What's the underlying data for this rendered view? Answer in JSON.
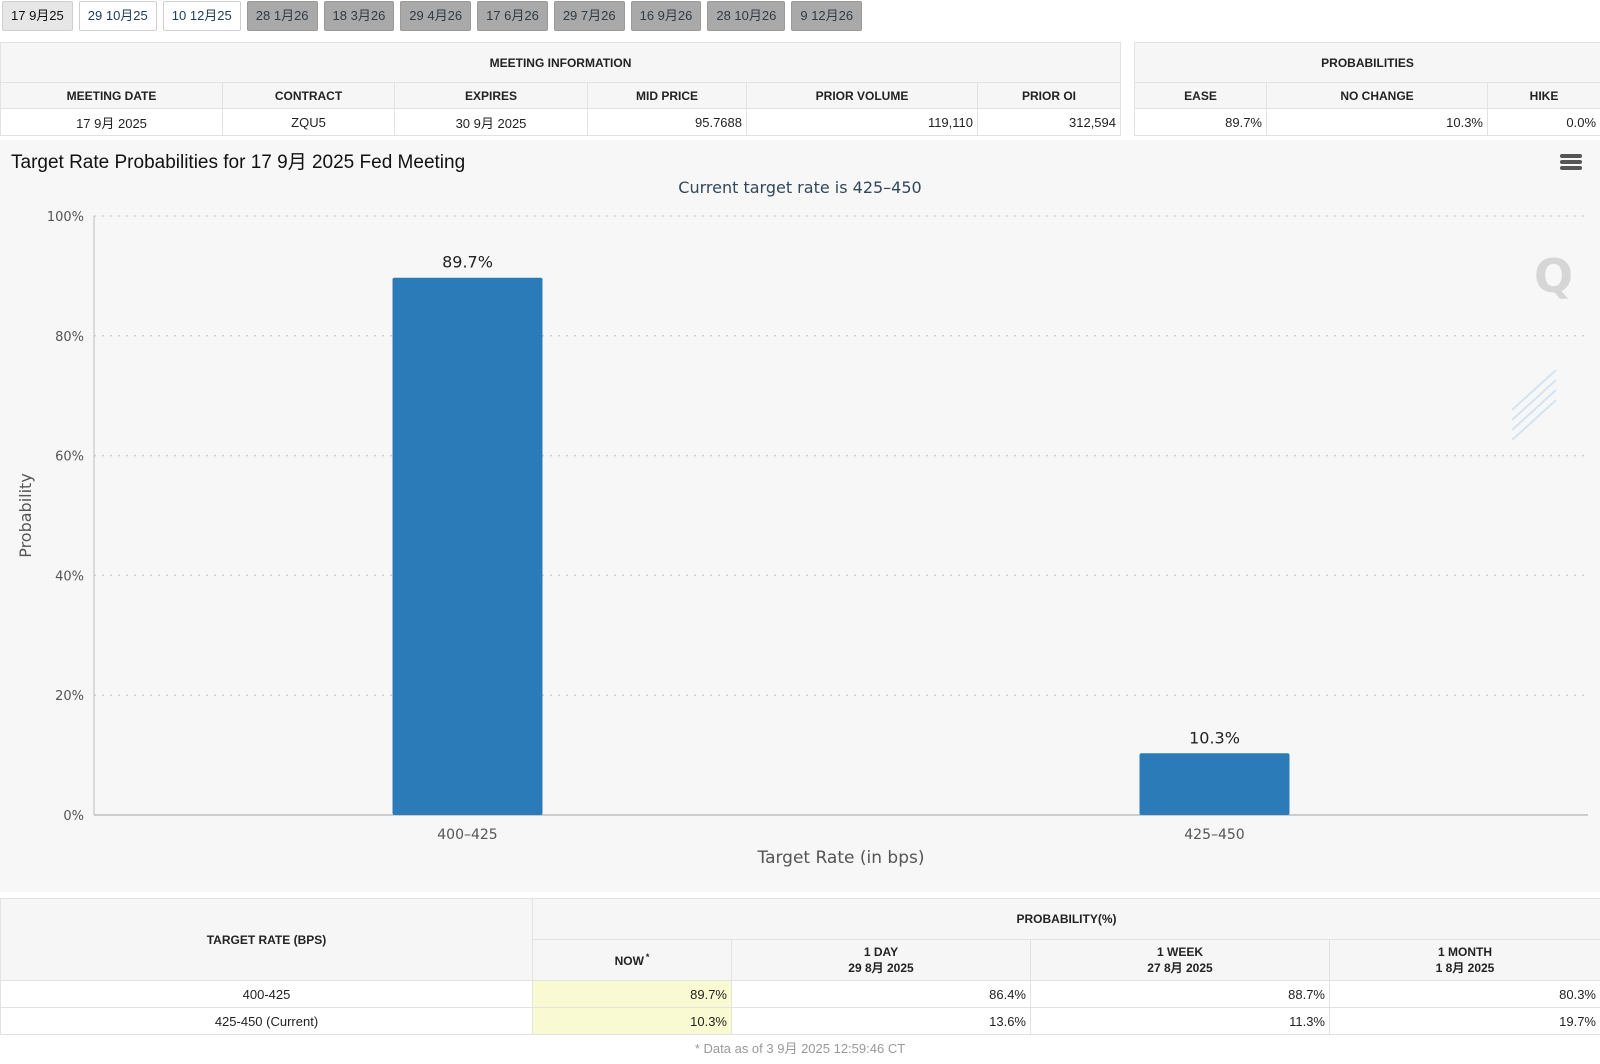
{
  "tabs": [
    {
      "label": "17 9月25",
      "state": "selected"
    },
    {
      "label": "29 10月25",
      "state": "plain"
    },
    {
      "label": "10 12月25",
      "state": "plain"
    },
    {
      "label": "28 1月26",
      "state": "grey"
    },
    {
      "label": "18 3月26",
      "state": "grey"
    },
    {
      "label": "29 4月26",
      "state": "grey"
    },
    {
      "label": "17 6月26",
      "state": "grey"
    },
    {
      "label": "29 7月26",
      "state": "grey"
    },
    {
      "label": "16 9月26",
      "state": "grey"
    },
    {
      "label": "28 10月26",
      "state": "grey"
    },
    {
      "label": "9 12月26",
      "state": "grey"
    }
  ],
  "meeting_info": {
    "title": "MEETING INFORMATION",
    "headers": [
      "MEETING DATE",
      "CONTRACT",
      "EXPIRES",
      "MID PRICE",
      "PRIOR VOLUME",
      "PRIOR OI"
    ],
    "row": [
      "17 9月 2025",
      "ZQU5",
      "30 9月 2025",
      "95.7688",
      "119,110",
      "312,594"
    ]
  },
  "probabilities": {
    "title": "PROBABILITIES",
    "headers": [
      "EASE",
      "NO CHANGE",
      "HIKE"
    ],
    "row": [
      "89.7%",
      "10.3%",
      "0.0%"
    ]
  },
  "chart": {
    "title": "Target Rate Probabilities for 17 9月 2025 Fed Meeting",
    "subtitle": "Current target rate is 425–450",
    "menu_icon": "hamburger-menu-icon",
    "watermark_icon": "q-logo-icon"
  },
  "chart_data": {
    "type": "bar",
    "title": "Target Rate Probabilities for 17 9月 2025 Fed Meeting",
    "subtitle": "Current target rate is 425–450",
    "categories": [
      "400–425",
      "425–450"
    ],
    "values": [
      89.7,
      10.3
    ],
    "data_labels": [
      "89.7%",
      "10.3%"
    ],
    "xlabel": "Target Rate (in bps)",
    "ylabel": "Probability",
    "ylim": [
      0,
      100
    ],
    "yticks": [
      0,
      20,
      40,
      60,
      80,
      100
    ],
    "ytick_labels": [
      "0%",
      "20%",
      "40%",
      "60%",
      "80%",
      "100%"
    ],
    "grid": true,
    "bar_color": "#2b7bb9"
  },
  "prob_table": {
    "target_header": "TARGET RATE (BPS)",
    "group_header": "PROBABILITY(%)",
    "now_header": "NOW",
    "now_marker": "*",
    "columns": [
      {
        "label": "1 DAY",
        "date": "29 8月 2025"
      },
      {
        "label": "1 WEEK",
        "date": "27 8月 2025"
      },
      {
        "label": "1 MONTH",
        "date": "1 8月 2025"
      }
    ],
    "rows": [
      {
        "rate": "400-425",
        "now": "89.7%",
        "values": [
          "86.4%",
          "88.7%",
          "80.3%"
        ]
      },
      {
        "rate": "425-450 (Current)",
        "now": "10.3%",
        "values": [
          "13.6%",
          "11.3%",
          "19.7%"
        ]
      }
    ],
    "now_highlight": "#fafad2"
  },
  "footnote": "* Data as of 3 9月 2025 12:59:46 CT"
}
